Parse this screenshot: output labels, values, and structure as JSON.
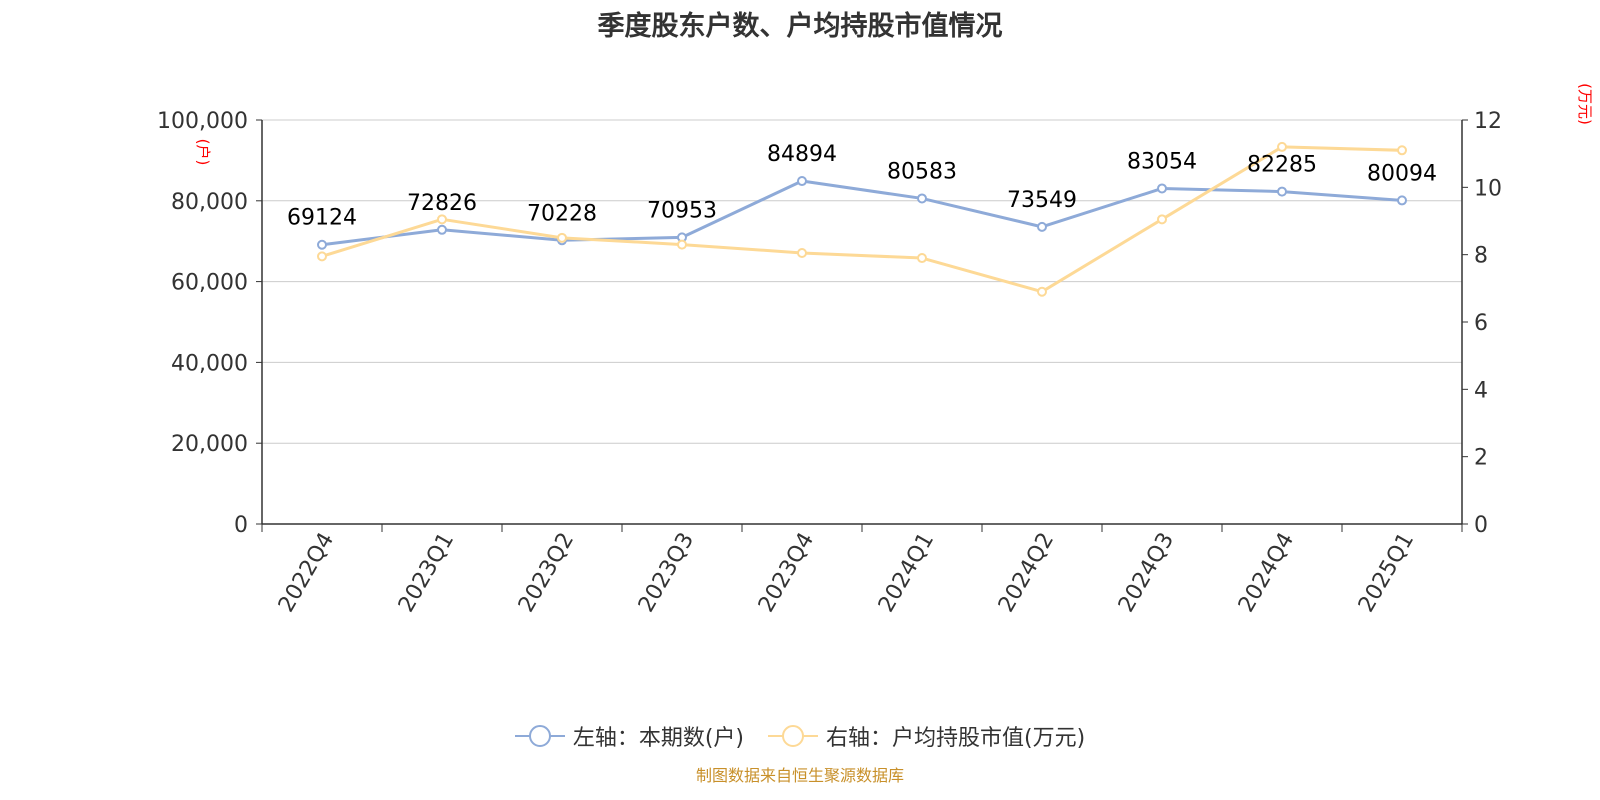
{
  "title": "季度股东户数、户均持股市值情况",
  "source": "制图数据来自恒生聚源数据库",
  "colors": {
    "left_series": "#8eaad8",
    "right_series": "#fdd996",
    "axis_unit": "#ff0000",
    "grid": "#cccccc"
  },
  "chart_data": {
    "type": "line",
    "categories": [
      "2022Q4",
      "2023Q1",
      "2023Q2",
      "2023Q3",
      "2023Q4",
      "2024Q1",
      "2024Q2",
      "2024Q3",
      "2024Q4",
      "2025Q1"
    ],
    "series": [
      {
        "name": "左轴：本期数(户)",
        "axis": "left",
        "values": [
          69124,
          72826,
          70228,
          70953,
          84894,
          80583,
          73549,
          83054,
          82285,
          80094
        ],
        "data_labels": [
          "69124",
          "72826",
          "70228",
          "70953",
          "84894",
          "80583",
          "73549",
          "83054",
          "82285",
          "80094"
        ]
      },
      {
        "name": "右轴：户均持股市值(万元)",
        "axis": "right",
        "values": [
          7.95,
          9.05,
          8.5,
          8.3,
          8.05,
          7.9,
          6.9,
          9.05,
          11.2,
          11.1
        ]
      }
    ],
    "left_axis": {
      "unit": "(户)",
      "ylim": [
        0,
        100000
      ],
      "tick_labels": [
        "0",
        "20,000",
        "40,000",
        "60,000",
        "80,000",
        "100,000"
      ]
    },
    "right_axis": {
      "unit": "(万元)",
      "ylim": [
        0,
        12
      ],
      "tick_labels": [
        "0",
        "2",
        "4",
        "6",
        "8",
        "10",
        "12"
      ]
    },
    "grid": true,
    "legend_position": "bottom"
  }
}
